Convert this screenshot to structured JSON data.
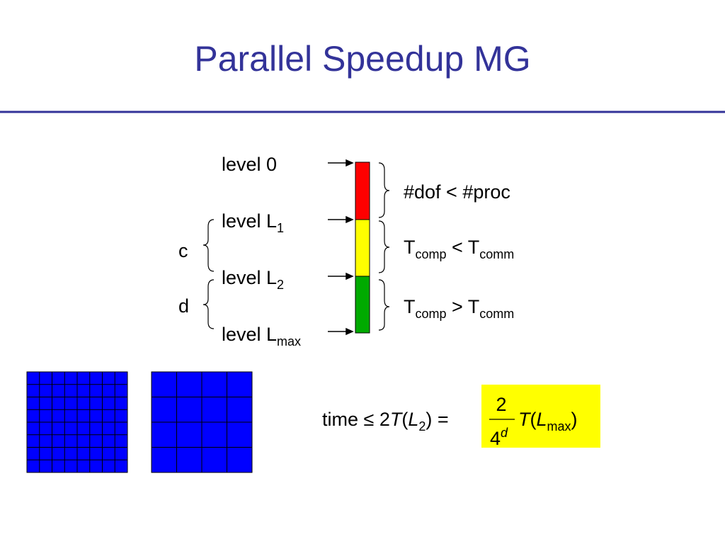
{
  "title": "Parallel Speedup MG",
  "levels": [
    {
      "text": "level 0"
    },
    {
      "text": "level L",
      "sub": "1"
    },
    {
      "text": "level L",
      "sub": "2"
    },
    {
      "text": "level L",
      "sub": "max"
    }
  ],
  "groups": [
    "c",
    "d"
  ],
  "conditions": [
    {
      "text": "#dof < #proc"
    },
    {
      "lhs": "T",
      "lhs_sub": "comp",
      "op": " < T",
      "rhs_sub": "comm"
    },
    {
      "lhs": "T",
      "lhs_sub": "comp",
      "op": " > T",
      "rhs_sub": "comm"
    }
  ],
  "formula": {
    "prefix": "time ≤ 2",
    "f1": "T",
    "open1": "(",
    "var1": "L",
    "sub1": "2",
    "close1": ") =",
    "num": "2",
    "den": "4",
    "den_sup": "d",
    "f2": "T",
    "open2": "(",
    "var2": "L",
    "sub2": "max",
    "close2": ")"
  }
}
